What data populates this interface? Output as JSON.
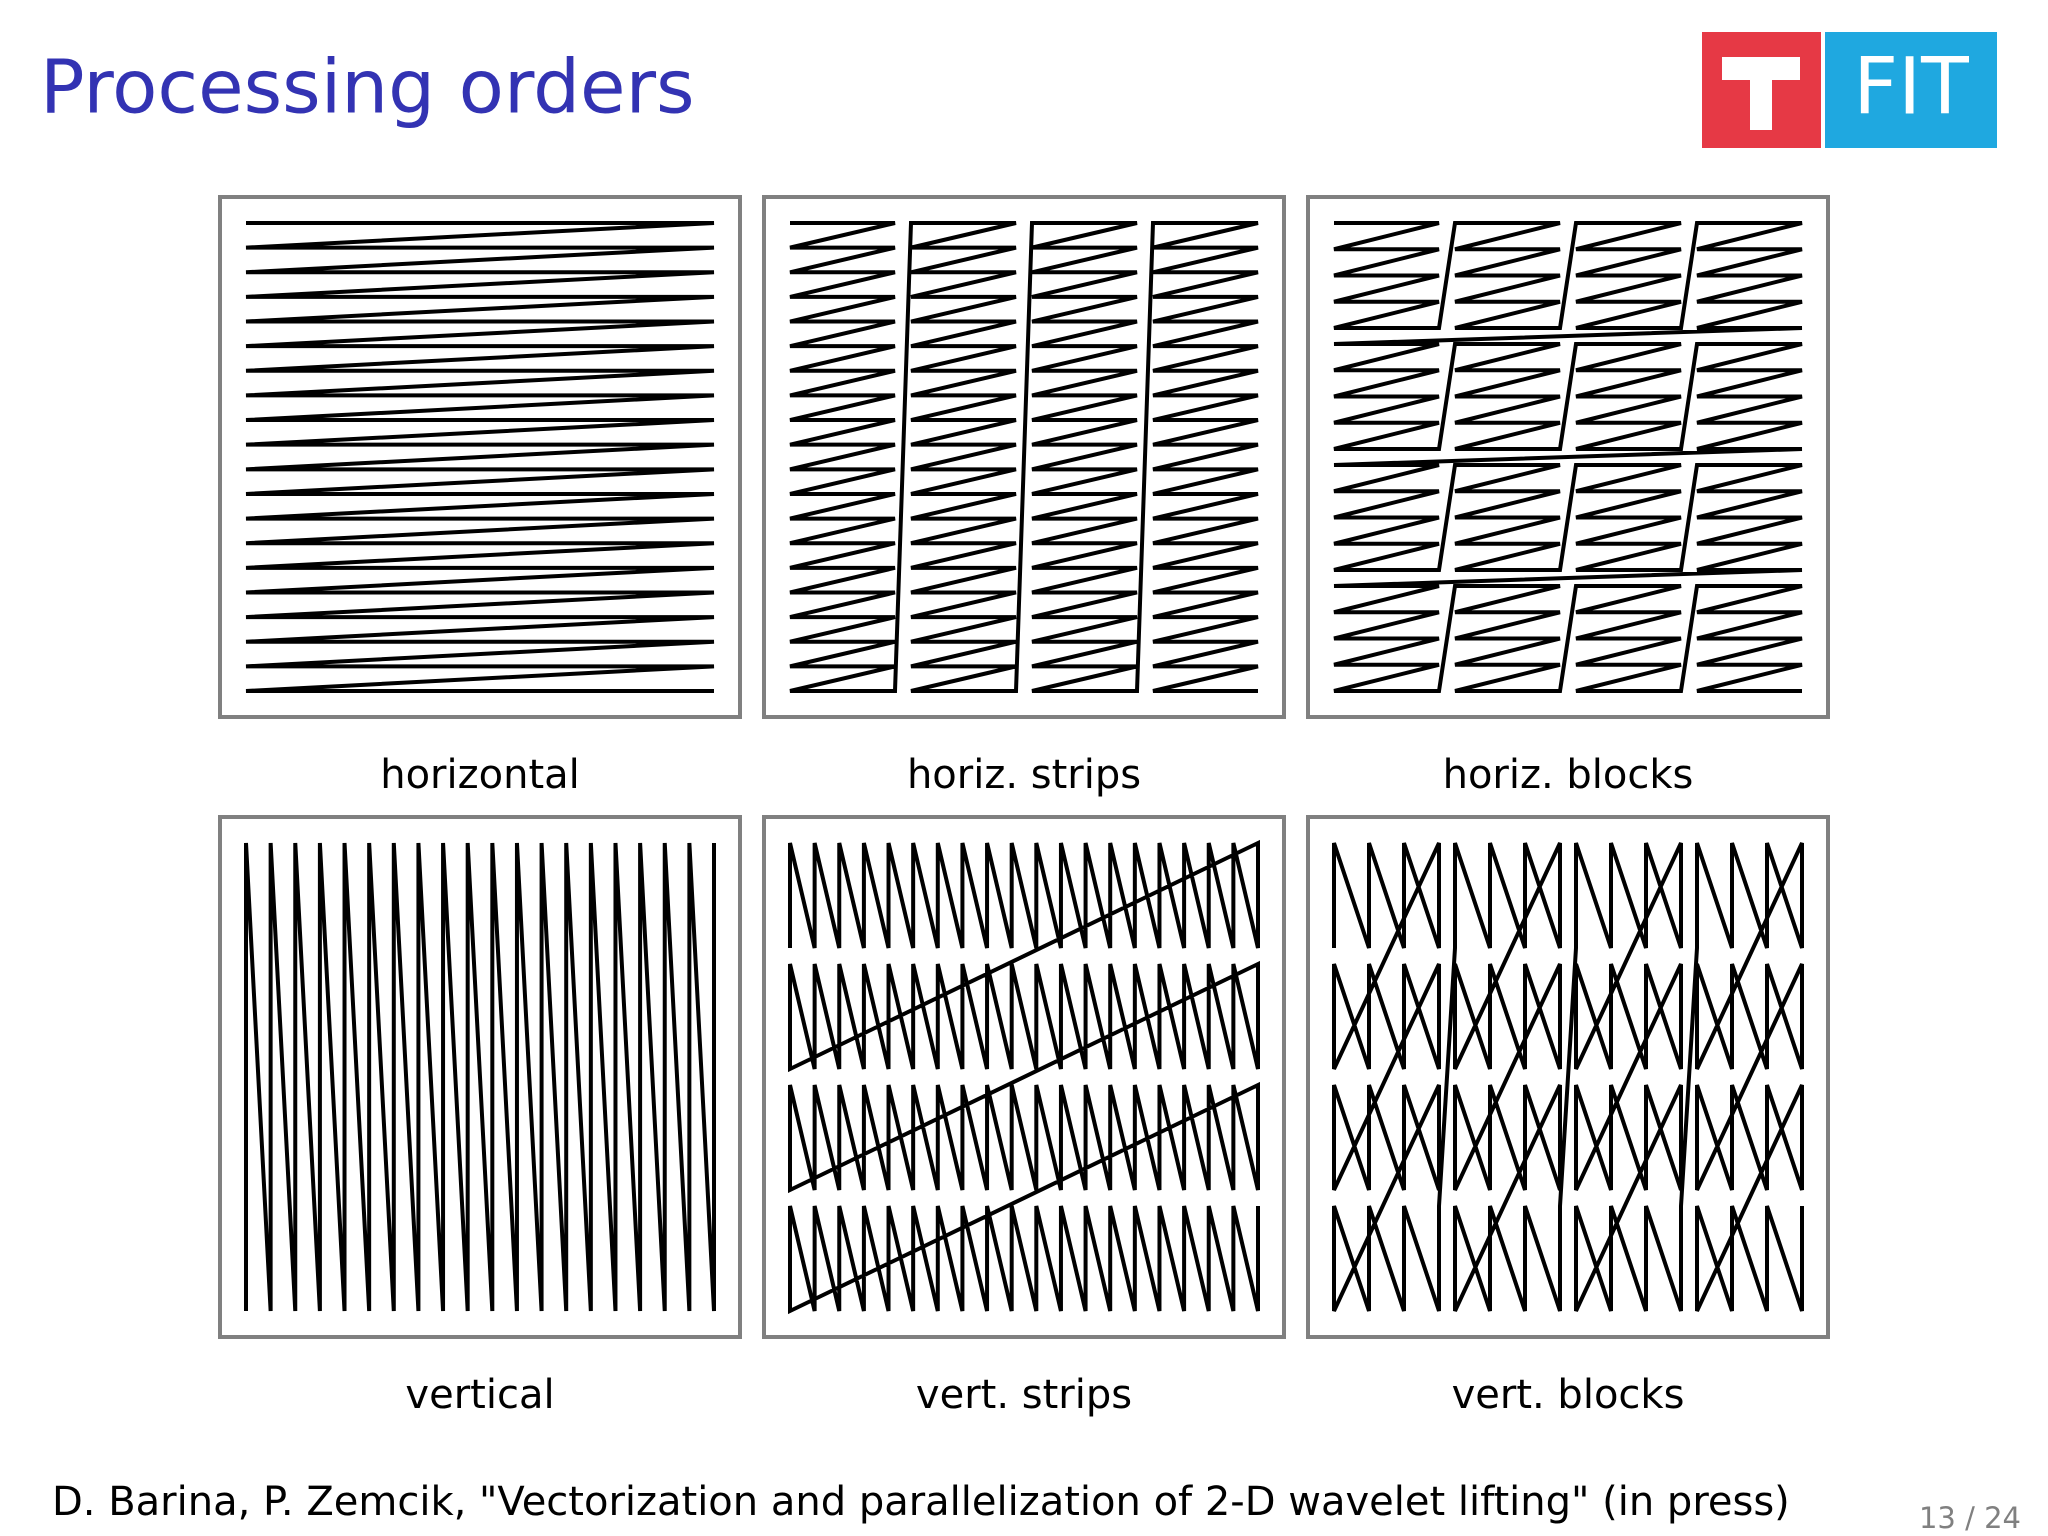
{
  "header": {
    "title": "Processing orders",
    "logo": "FIT"
  },
  "panels": [
    {
      "caption": "horizontal"
    },
    {
      "caption": "horiz.  strips"
    },
    {
      "caption": "horiz.  blocks"
    },
    {
      "caption": "vertical"
    },
    {
      "caption": "vert.  strips"
    },
    {
      "caption": "vert.  blocks"
    }
  ],
  "footer": {
    "citation": "D. Barina, P. Zemcik, \"Vectorization and parallelization of 2-D wavelet lifting\" (in press)",
    "page_number": "13 / 24"
  }
}
